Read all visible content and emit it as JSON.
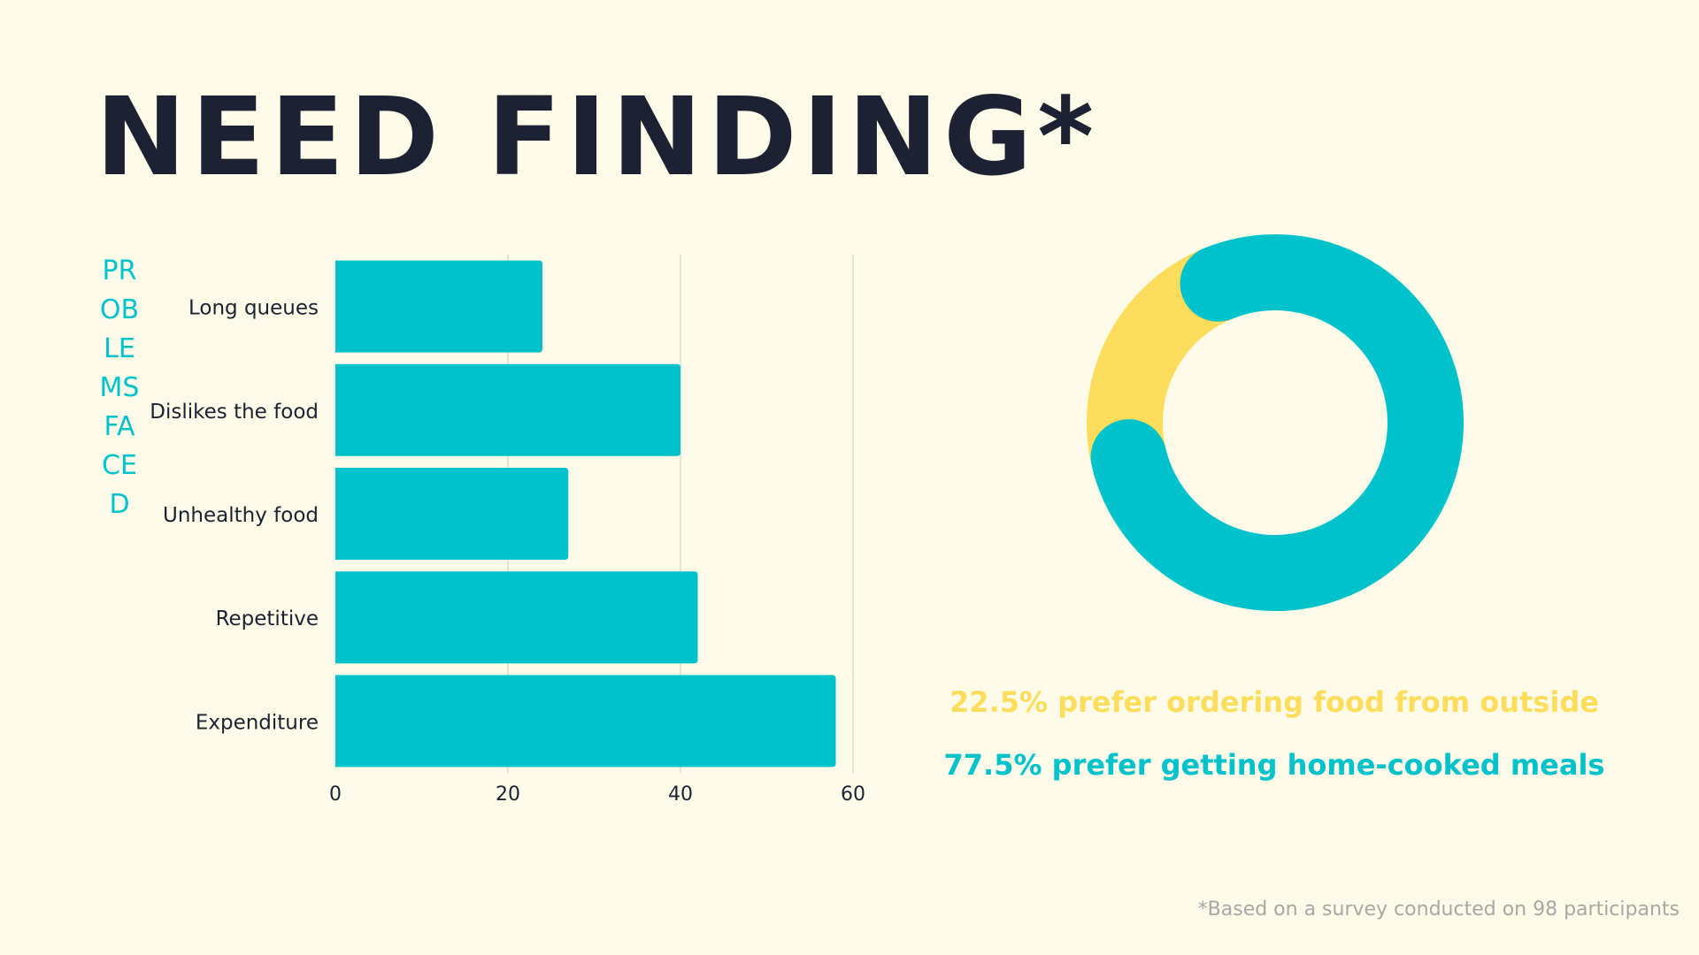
{
  "title": "NEED FINDING*",
  "vertical_label": "PROBLEMS FACED",
  "chart_data": [
    {
      "type": "bar",
      "orientation": "horizontal",
      "categories": [
        "Long queues",
        "Dislikes the food",
        "Unhealthy food",
        "Repetitive",
        "Expenditure"
      ],
      "values": [
        24,
        40,
        27,
        42,
        58
      ],
      "xlim": [
        0,
        60
      ],
      "xticks": [
        "0",
        "20",
        "40",
        "60"
      ],
      "grid": true,
      "bar_color": "#00c2cb"
    },
    {
      "type": "pie",
      "donut": true,
      "slices": [
        {
          "label": "22.5% prefer ordering food from outside",
          "value": 22.5,
          "color": "#ffdd5c"
        },
        {
          "label": "77.5% prefer getting home-cooked meals",
          "value": 77.5,
          "color": "#00c2cb"
        }
      ]
    }
  ],
  "footnote": "*Based on a survey conducted on 98 participants"
}
